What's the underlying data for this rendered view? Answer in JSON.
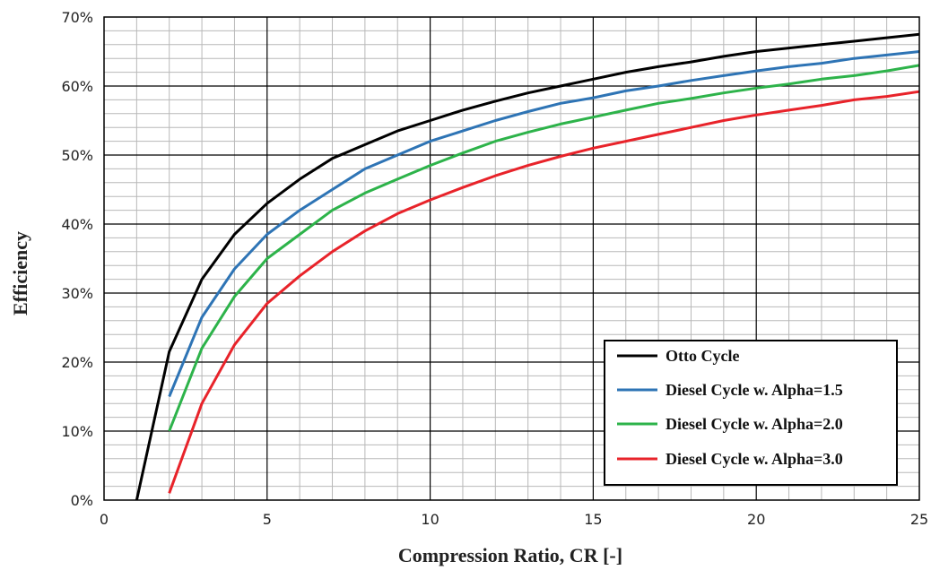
{
  "chart_data": {
    "type": "line",
    "title": "",
    "xlabel": "Compression Ratio, CR [-]",
    "ylabel": "Efficiency",
    "xlim": [
      0,
      25
    ],
    "ylim": [
      0,
      70
    ],
    "x_ticks": [
      0,
      5,
      10,
      15,
      20,
      25
    ],
    "y_ticks": [
      0,
      10,
      20,
      30,
      40,
      50,
      60,
      70
    ],
    "x_tick_labels": [
      "0",
      "5",
      "10",
      "15",
      "20",
      "25"
    ],
    "y_tick_labels": [
      "0%",
      "10%",
      "20%",
      "30%",
      "40%",
      "50%",
      "60%",
      "70%"
    ],
    "grid": true,
    "legend_position": "bottom-right",
    "series": [
      {
        "name": "Otto Cycle",
        "color": "#000000",
        "x": [
          1,
          2,
          3,
          4,
          5,
          6,
          7,
          8,
          9,
          10,
          11,
          12,
          13,
          14,
          15,
          16,
          17,
          18,
          19,
          20,
          21,
          22,
          23,
          24,
          25
        ],
        "y": [
          0,
          21.5,
          32,
          38.5,
          43,
          46.5,
          49.5,
          51.5,
          53.5,
          55,
          56.5,
          57.8,
          59,
          60,
          61,
          62,
          62.8,
          63.5,
          64.3,
          65,
          65.5,
          66,
          66.5,
          67,
          67.5
        ]
      },
      {
        "name": "Diesel Cycle w. Alpha=1.5",
        "color": "#2e74b5",
        "x": [
          2,
          3,
          4,
          5,
          6,
          7,
          8,
          9,
          10,
          11,
          12,
          13,
          14,
          15,
          16,
          17,
          18,
          19,
          20,
          21,
          22,
          23,
          24,
          25
        ],
        "y": [
          15,
          26.5,
          33.5,
          38.5,
          42,
          45,
          48,
          50,
          52,
          53.5,
          55,
          56.3,
          57.5,
          58.3,
          59.3,
          60,
          60.8,
          61.5,
          62.2,
          62.8,
          63.3,
          64,
          64.5,
          65
        ]
      },
      {
        "name": "Diesel Cycle w. Alpha=2.0",
        "color": "#2db34a",
        "x": [
          2,
          3,
          4,
          5,
          6,
          7,
          8,
          9,
          10,
          11,
          12,
          13,
          14,
          15,
          16,
          17,
          18,
          19,
          20,
          21,
          22,
          23,
          24,
          25
        ],
        "y": [
          10,
          22,
          29.5,
          35,
          38.5,
          42,
          44.5,
          46.5,
          48.5,
          50.3,
          52,
          53.3,
          54.5,
          55.5,
          56.5,
          57.5,
          58.2,
          59,
          59.7,
          60.3,
          61,
          61.5,
          62.2,
          63
        ]
      },
      {
        "name": "Diesel Cycle w. Alpha=3.0",
        "color": "#e8232a",
        "x": [
          2,
          3,
          4,
          5,
          6,
          7,
          8,
          9,
          10,
          11,
          12,
          13,
          14,
          15,
          16,
          17,
          18,
          19,
          20,
          21,
          22,
          23,
          24,
          25
        ],
        "y": [
          1,
          14,
          22.5,
          28.5,
          32.5,
          36,
          39,
          41.5,
          43.5,
          45.3,
          47,
          48.5,
          49.8,
          51,
          52,
          53,
          54,
          55,
          55.8,
          56.5,
          57.2,
          58,
          58.5,
          59.2
        ]
      }
    ]
  }
}
